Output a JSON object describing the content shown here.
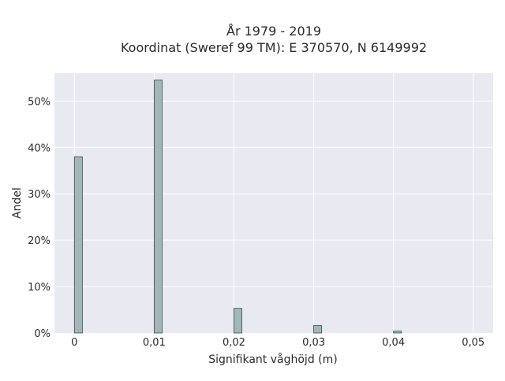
{
  "chart_data": {
    "type": "bar",
    "title_line1": "År 1979 - 2019",
    "title_line2": "Koordinat (Sweref 99 TM): E 370570, N 6149992",
    "xlabel": "Signifikant våghöjd (m)",
    "ylabel": "Andel",
    "x_ticks": [
      "0",
      "0,01",
      "0,02",
      "0,03",
      "0,04",
      "0,05"
    ],
    "x_tick_values": [
      0,
      0.01,
      0.02,
      0.03,
      0.04,
      0.05
    ],
    "y_ticks": [
      "0%",
      "10%",
      "20%",
      "30%",
      "40%",
      "50%"
    ],
    "y_tick_values": [
      0,
      10,
      20,
      30,
      40,
      50
    ],
    "xlim": [
      -0.0025,
      0.0525
    ],
    "ylim": [
      0,
      56
    ],
    "grid": true,
    "bar_width": 0.001,
    "bars": [
      {
        "x": 0.0005,
        "value": 38.0
      },
      {
        "x": 0.0105,
        "value": 54.5
      },
      {
        "x": 0.0205,
        "value": 5.3
      },
      {
        "x": 0.0305,
        "value": 1.6
      },
      {
        "x": 0.0405,
        "value": 0.4
      }
    ],
    "colors": {
      "plot_bg": "#e9e9f2",
      "grid": "#ffffff",
      "bar_fill": "#a2b8b8",
      "bar_edge": "#3a4a48"
    }
  }
}
